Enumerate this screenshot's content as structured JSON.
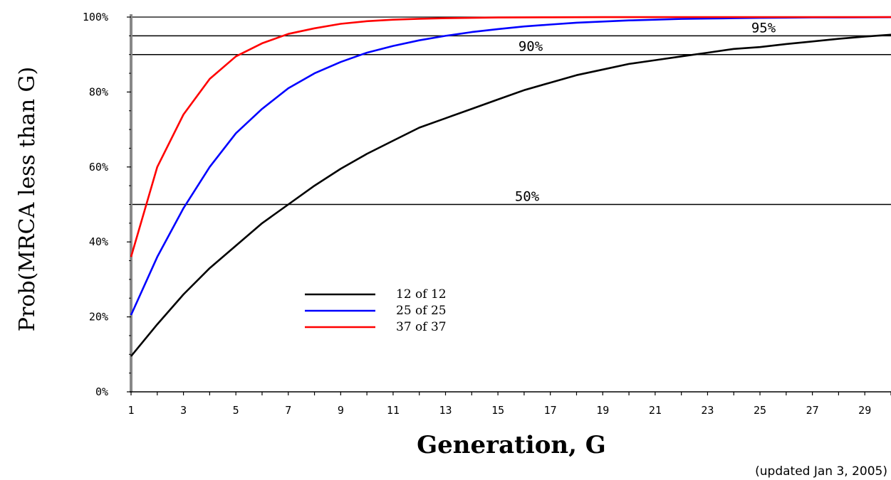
{
  "chart_data": {
    "type": "line",
    "xlabel": "Generation, G",
    "ylabel": "Prob(MRCA less than G)",
    "note": "(updated Jan 3, 2005)",
    "xlim": [
      1,
      30
    ],
    "ylim": [
      0,
      100
    ],
    "x_ticks": [
      1,
      3,
      5,
      7,
      9,
      11,
      13,
      15,
      17,
      19,
      21,
      23,
      25,
      27,
      29
    ],
    "y_ticks": [
      {
        "value": 0,
        "label": "0%"
      },
      {
        "value": 20,
        "label": "20%"
      },
      {
        "value": 40,
        "label": "40%"
      },
      {
        "value": 60,
        "label": "60%"
      },
      {
        "value": 80,
        "label": "80%"
      },
      {
        "value": 100,
        "label": "100%"
      }
    ],
    "reference_lines": [
      {
        "value": 50,
        "label": "50%"
      },
      {
        "value": 90,
        "label": "90%"
      },
      {
        "value": 95,
        "label": "95%"
      }
    ],
    "legend_position": "center-left",
    "x": [
      1,
      2,
      3,
      4,
      5,
      6,
      7,
      8,
      9,
      10,
      11,
      12,
      13,
      14,
      15,
      16,
      17,
      18,
      19,
      20,
      21,
      22,
      23,
      24,
      25,
      26,
      27,
      28,
      29,
      30
    ],
    "series": [
      {
        "name": "12 of 12",
        "color": "#000000",
        "values": [
          9.5,
          18,
          26,
          33,
          39,
          45,
          50,
          55,
          59.5,
          63.5,
          67,
          70.5,
          73,
          75.5,
          78,
          80.5,
          82.5,
          84.5,
          86,
          87.5,
          88.5,
          89.5,
          90.5,
          91.5,
          92,
          92.8,
          93.5,
          94.2,
          94.8,
          95.3
        ]
      },
      {
        "name": "25 of 25",
        "color": "#0000ff",
        "values": [
          20.5,
          36,
          49,
          60,
          69,
          75.5,
          81,
          85,
          88,
          90.5,
          92.3,
          93.8,
          95,
          96,
          96.8,
          97.5,
          98,
          98.5,
          98.8,
          99.1,
          99.3,
          99.5,
          99.6,
          99.7,
          99.8,
          99.85,
          99.9,
          99.93,
          99.95,
          99.97
        ]
      },
      {
        "name": "37 of 37",
        "color": "#ff0000",
        "values": [
          36,
          60,
          74,
          83.5,
          89.5,
          93,
          95.5,
          97,
          98.2,
          98.9,
          99.3,
          99.55,
          99.7,
          99.8,
          99.88,
          99.92,
          99.95,
          99.97,
          99.98,
          99.99,
          99.99,
          100,
          100,
          100,
          100,
          100,
          100,
          100,
          100,
          100
        ]
      }
    ]
  }
}
